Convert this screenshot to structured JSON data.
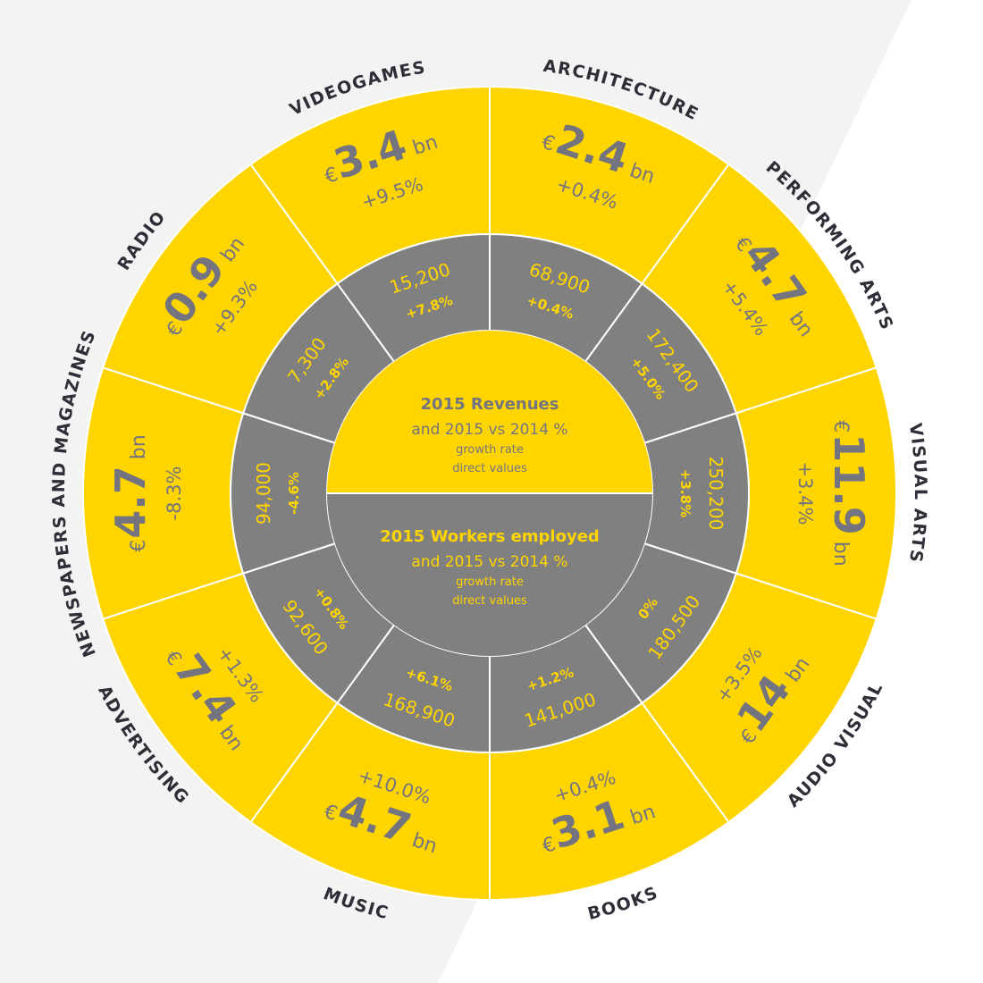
{
  "colors": {
    "yellow": "#FFD500",
    "grey": "#808080",
    "dark_text": "#2e2e38",
    "value_grey": "#747480",
    "background": "#f3f3f3",
    "divider": "#ffffff"
  },
  "center": {
    "top": {
      "title": "2015 Revenues",
      "line2": "and 2015 vs 2014 %",
      "line3": "growth rate",
      "line4": "direct values"
    },
    "bottom": {
      "title": "2015 Workers employed",
      "line2": "and 2015 vs 2014 %",
      "line3": "growth rate",
      "line4": "direct values"
    }
  },
  "sectors": [
    {
      "name": "ARCHITECTURE",
      "currency": "€",
      "revenue": "2.4",
      "unit": "bn",
      "revenue_growth": "+0.4%",
      "workers": "68,900",
      "workers_growth": "+0.4%"
    },
    {
      "name": "PERFORMING ARTS",
      "currency": "€",
      "revenue": "4.7",
      "unit": "bn",
      "revenue_growth": "+5.4%",
      "workers": "172,400",
      "workers_growth": "+5.0%"
    },
    {
      "name": "VISUAL ARTS",
      "currency": "€",
      "revenue": "11.9",
      "unit": "bn",
      "revenue_growth": "+3.4%",
      "workers": "250,200",
      "workers_growth": "+3.8%"
    },
    {
      "name": "AUDIO VISUAL",
      "currency": "€",
      "revenue": "14",
      "unit": "bn",
      "revenue_growth": "+3.5%",
      "workers": "180,500",
      "workers_growth": "0%"
    },
    {
      "name": "BOOKS",
      "currency": "€",
      "revenue": "3.1",
      "unit": "bn",
      "revenue_growth": "+0.4%",
      "workers": "141,000",
      "workers_growth": "+1.2%"
    },
    {
      "name": "MUSIC",
      "currency": "€",
      "revenue": "4.7",
      "unit": "bn",
      "revenue_growth": "+10.0%",
      "workers": "168,900",
      "workers_growth": "+6.1%"
    },
    {
      "name": "ADVERTISING",
      "currency": "€",
      "revenue": "7.4",
      "unit": "bn",
      "revenue_growth": "+1.3%",
      "workers": "92,600",
      "workers_growth": "+0.8%"
    },
    {
      "name": "NEWSPAPERS AND MAGAZINES",
      "currency": "€",
      "revenue": "4.7",
      "unit": "bn",
      "revenue_growth": "-8.3%",
      "workers": "94,000",
      "workers_growth": "-4.6%"
    },
    {
      "name": "RADIO",
      "currency": "€",
      "revenue": "0.9",
      "unit": "bn",
      "revenue_growth": "+9.3%",
      "workers": "7,300",
      "workers_growth": "+2.8%"
    },
    {
      "name": "VIDEOGAMES",
      "currency": "€",
      "revenue": "3.4",
      "unit": "bn",
      "revenue_growth": "+9.5%",
      "workers": "15,200",
      "workers_growth": "+7.8%"
    }
  ]
}
